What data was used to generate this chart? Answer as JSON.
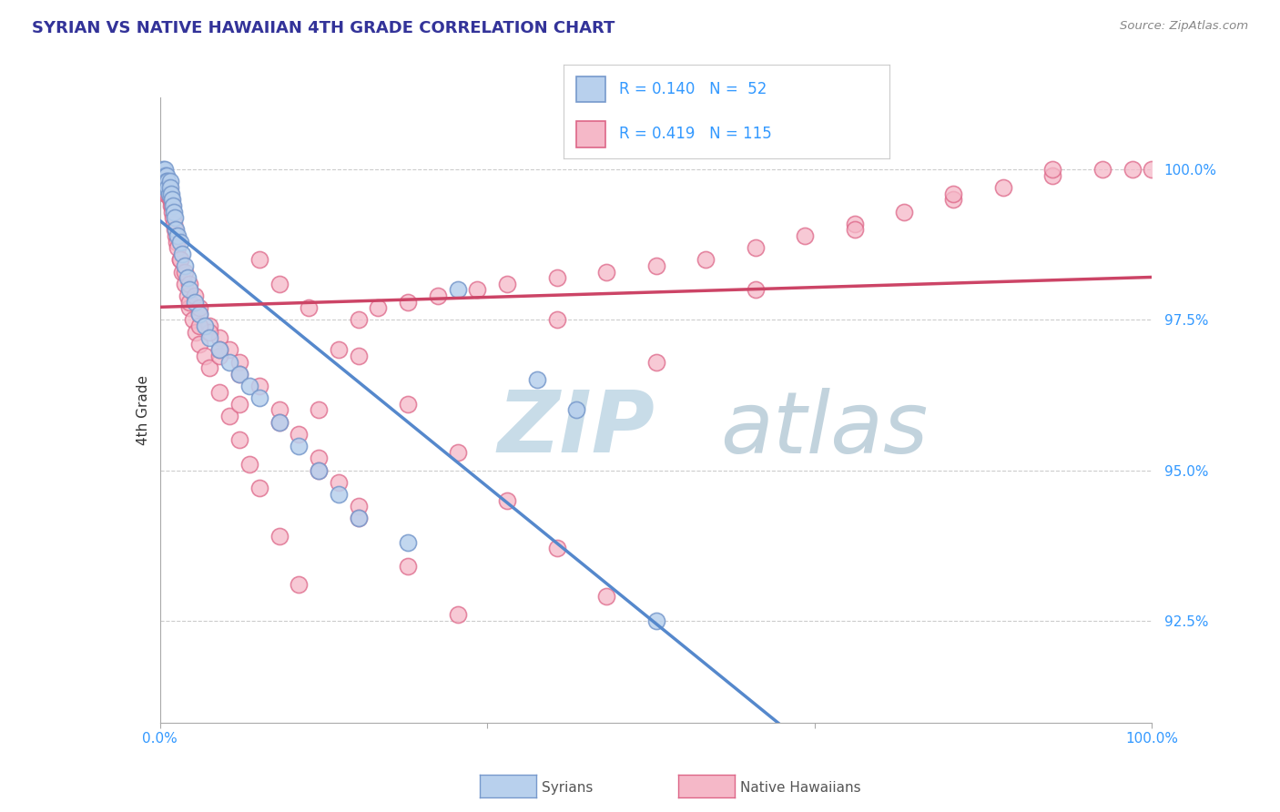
{
  "title": "SYRIAN VS NATIVE HAWAIIAN 4TH GRADE CORRELATION CHART",
  "source": "Source: ZipAtlas.com",
  "ylabel": "4th Grade",
  "ytick_labels": [
    "92.5%",
    "95.0%",
    "97.5%",
    "100.0%"
  ],
  "ytick_values": [
    0.925,
    0.95,
    0.975,
    1.0
  ],
  "xmin": 0.0,
  "xmax": 1.0,
  "ymin": 0.908,
  "ymax": 1.012,
  "color_syrian_face": "#b8d0ed",
  "color_syrian_edge": "#7799cc",
  "color_hawaiian_face": "#f5b8c8",
  "color_hawaiian_edge": "#dd6688",
  "color_line_syrian": "#5588cc",
  "color_line_hawaiian": "#cc4466",
  "color_title": "#333399",
  "color_ytick": "#3399ff",
  "color_xtick": "#3399ff",
  "watermark_zip_color": "#c8dce8",
  "watermark_atlas_color": "#b8ccd8",
  "R_syrian": 0.14,
  "N_syrian": 52,
  "R_hawaiian": 0.419,
  "N_hawaiian": 115,
  "legend_label1": "Syrians",
  "legend_label2": "Native Hawaiians",
  "syrians_x": [
    0.001,
    0.002,
    0.002,
    0.003,
    0.003,
    0.003,
    0.004,
    0.004,
    0.005,
    0.005,
    0.005,
    0.006,
    0.006,
    0.006,
    0.007,
    0.007,
    0.008,
    0.008,
    0.009,
    0.01,
    0.01,
    0.011,
    0.012,
    0.013,
    0.014,
    0.015,
    0.016,
    0.018,
    0.02,
    0.022,
    0.025,
    0.028,
    0.03,
    0.035,
    0.04,
    0.045,
    0.05,
    0.06,
    0.07,
    0.08,
    0.09,
    0.1,
    0.12,
    0.14,
    0.16,
    0.18,
    0.2,
    0.25,
    0.3,
    0.38,
    0.42,
    0.5
  ],
  "syrians_y": [
    0.999,
    0.998,
    0.999,
    0.999,
    0.998,
    1.0,
    0.999,
    0.998,
    0.999,
    0.998,
    1.0,
    0.999,
    0.998,
    0.997,
    0.999,
    0.998,
    0.998,
    0.997,
    0.996,
    0.998,
    0.997,
    0.996,
    0.995,
    0.994,
    0.993,
    0.992,
    0.99,
    0.989,
    0.988,
    0.986,
    0.984,
    0.982,
    0.98,
    0.978,
    0.976,
    0.974,
    0.972,
    0.97,
    0.968,
    0.966,
    0.964,
    0.962,
    0.958,
    0.954,
    0.95,
    0.946,
    0.942,
    0.938,
    0.98,
    0.965,
    0.96,
    0.925
  ],
  "hawaiians_x": [
    0.001,
    0.001,
    0.002,
    0.002,
    0.003,
    0.003,
    0.003,
    0.004,
    0.004,
    0.005,
    0.005,
    0.005,
    0.006,
    0.006,
    0.006,
    0.007,
    0.007,
    0.008,
    0.008,
    0.009,
    0.009,
    0.01,
    0.01,
    0.011,
    0.011,
    0.012,
    0.012,
    0.013,
    0.014,
    0.015,
    0.016,
    0.017,
    0.018,
    0.02,
    0.022,
    0.025,
    0.028,
    0.03,
    0.033,
    0.036,
    0.04,
    0.045,
    0.05,
    0.06,
    0.07,
    0.08,
    0.09,
    0.1,
    0.12,
    0.14,
    0.16,
    0.18,
    0.2,
    0.22,
    0.25,
    0.28,
    0.32,
    0.35,
    0.4,
    0.45,
    0.5,
    0.55,
    0.6,
    0.65,
    0.7,
    0.75,
    0.8,
    0.85,
    0.9,
    0.95,
    0.98,
    1.0,
    0.03,
    0.04,
    0.05,
    0.06,
    0.07,
    0.08,
    0.1,
    0.12,
    0.14,
    0.16,
    0.18,
    0.2,
    0.02,
    0.025,
    0.03,
    0.035,
    0.04,
    0.05,
    0.06,
    0.08,
    0.1,
    0.12,
    0.15,
    0.2,
    0.25,
    0.3,
    0.35,
    0.4,
    0.45,
    0.5,
    0.6,
    0.7,
    0.8,
    0.9,
    0.04,
    0.06,
    0.08,
    0.12,
    0.16,
    0.2,
    0.25,
    0.3,
    0.4
  ],
  "hawaiians_y": [
    0.999,
    0.998,
    0.999,
    0.998,
    0.999,
    0.998,
    0.997,
    0.999,
    0.998,
    0.999,
    0.998,
    0.997,
    0.998,
    0.997,
    0.996,
    0.998,
    0.997,
    0.997,
    0.996,
    0.997,
    0.996,
    0.996,
    0.995,
    0.995,
    0.994,
    0.994,
    0.993,
    0.992,
    0.991,
    0.99,
    0.989,
    0.988,
    0.987,
    0.985,
    0.983,
    0.981,
    0.979,
    0.977,
    0.975,
    0.973,
    0.971,
    0.969,
    0.967,
    0.963,
    0.959,
    0.955,
    0.951,
    0.947,
    0.939,
    0.931,
    0.96,
    0.97,
    0.975,
    0.977,
    0.978,
    0.979,
    0.98,
    0.981,
    0.982,
    0.983,
    0.984,
    0.985,
    0.987,
    0.989,
    0.991,
    0.993,
    0.995,
    0.997,
    0.999,
    1.0,
    1.0,
    1.0,
    0.978,
    0.976,
    0.974,
    0.972,
    0.97,
    0.968,
    0.964,
    0.96,
    0.956,
    0.952,
    0.948,
    0.944,
    0.985,
    0.983,
    0.981,
    0.979,
    0.977,
    0.973,
    0.969,
    0.961,
    0.985,
    0.981,
    0.977,
    0.969,
    0.961,
    0.953,
    0.945,
    0.937,
    0.929,
    0.968,
    0.98,
    0.99,
    0.996,
    1.0,
    0.974,
    0.97,
    0.966,
    0.958,
    0.95,
    0.942,
    0.934,
    0.926,
    0.975
  ]
}
